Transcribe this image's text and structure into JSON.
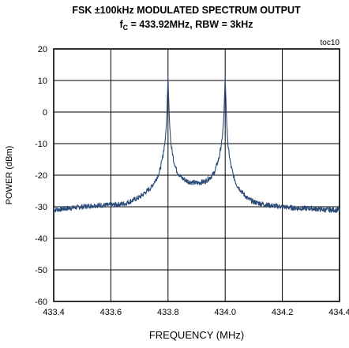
{
  "chart_data": {
    "type": "line",
    "title": "FSK ±100kHz MODULATED SPECTRUM OUTPUT",
    "subtitle": {
      "prefix": "f",
      "sub": "C",
      "rest": " = 433.92MHz, RBW = 3kHz"
    },
    "note": "toc10",
    "xlabel": "FREQUENCY (MHz)",
    "ylabel": "POWER (dBm)",
    "xlim": [
      433.4,
      434.4
    ],
    "ylim": [
      -60,
      20
    ],
    "xticks": [
      "433.4",
      "433.6",
      "433.8",
      "434.0",
      "434.2",
      "434.4"
    ],
    "yticks": [
      "20",
      "10",
      "0",
      "-10",
      "-20",
      "-30",
      "-40",
      "-50",
      "-60"
    ],
    "grid": true,
    "line_color": "#2a4a78",
    "series": [
      {
        "x": [
          433.4,
          433.45,
          433.5,
          433.55,
          433.6,
          433.65,
          433.7,
          433.72,
          433.74,
          433.76,
          433.77,
          433.78,
          433.79,
          433.795,
          433.8,
          433.805,
          433.81,
          433.82,
          433.83,
          433.84,
          433.85,
          433.87,
          433.9,
          433.93,
          433.95,
          433.96,
          433.97,
          433.98,
          433.99,
          433.995,
          434.0,
          434.005,
          434.01,
          434.02,
          434.03,
          434.04,
          434.06,
          434.08,
          434.1,
          434.15,
          434.2,
          434.25,
          434.3,
          434.35,
          434.4
        ],
        "y": [
          -31,
          -30.5,
          -30,
          -29.5,
          -29.5,
          -29,
          -27,
          -25.5,
          -24,
          -21,
          -19,
          -15,
          -9,
          -3,
          11,
          -3,
          -10,
          -15.5,
          -18.5,
          -20,
          -21,
          -22,
          -22.5,
          -22,
          -20.5,
          -19.5,
          -17,
          -14,
          -8,
          -2,
          11,
          -3,
          -11,
          -17,
          -20.5,
          -23,
          -25.5,
          -27.5,
          -28.5,
          -29.5,
          -30,
          -30.5,
          -30.5,
          -31,
          -31
        ]
      }
    ]
  }
}
